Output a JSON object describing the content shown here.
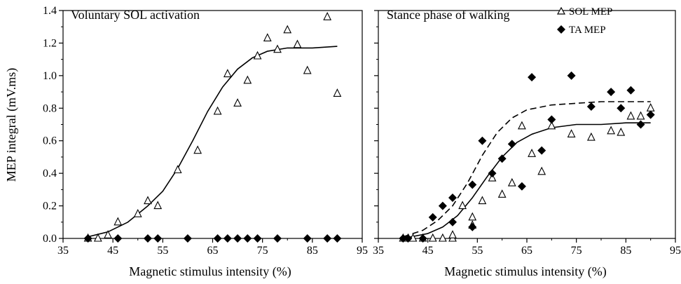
{
  "y_axis_label": "MEP integral (mV.ms)",
  "chart_data": [
    {
      "type": "scatter",
      "title": "Voluntary SOL activation",
      "xlabel": "Magnetic stimulus intensity (%)",
      "ylabel": "MEP integral (mV.ms)",
      "xlim": [
        35,
        95
      ],
      "ylim": [
        0,
        1.4
      ],
      "x_ticks": [
        "35",
        "45",
        "55",
        "65",
        "75",
        "85",
        "95"
      ],
      "y_ticks": [
        "0.0",
        "0.2",
        "0.4",
        "0.6",
        "0.8",
        "1.0",
        "1.2",
        "1.4"
      ],
      "series": [
        {
          "marker": "open-triangle",
          "points": [
            [
              40,
              0.0
            ],
            [
              42,
              0.0
            ],
            [
              44,
              0.02
            ],
            [
              46,
              0.1
            ],
            [
              50,
              0.15
            ],
            [
              52,
              0.23
            ],
            [
              54,
              0.2
            ],
            [
              58,
              0.42
            ],
            [
              62,
              0.54
            ],
            [
              66,
              0.78
            ],
            [
              68,
              1.01
            ],
            [
              70,
              0.83
            ],
            [
              72,
              0.97
            ],
            [
              74,
              1.12
            ],
            [
              76,
              1.23
            ],
            [
              78,
              1.16
            ],
            [
              80,
              1.28
            ],
            [
              82,
              1.19
            ],
            [
              84,
              1.03
            ],
            [
              88,
              1.36
            ],
            [
              90,
              0.89
            ]
          ]
        },
        {
          "marker": "filled-diamond",
          "points": [
            [
              40,
              0.0
            ],
            [
              46,
              0.0
            ],
            [
              52,
              0.0
            ],
            [
              54,
              0.0
            ],
            [
              60,
              0.0
            ],
            [
              66,
              0.0
            ],
            [
              68,
              0.0
            ],
            [
              70,
              0.0
            ],
            [
              72,
              0.0
            ],
            [
              74,
              0.0
            ],
            [
              78,
              0.0
            ],
            [
              84,
              0.0
            ],
            [
              88,
              0.0
            ],
            [
              90,
              0.0
            ]
          ]
        }
      ],
      "fits": [
        {
          "style": "solid",
          "points": [
            [
              40,
              0.01
            ],
            [
              44,
              0.04
            ],
            [
              48,
              0.1
            ],
            [
              52,
              0.2
            ],
            [
              55,
              0.29
            ],
            [
              58,
              0.43
            ],
            [
              61,
              0.6
            ],
            [
              64,
              0.78
            ],
            [
              67,
              0.93
            ],
            [
              70,
              1.04
            ],
            [
              73,
              1.11
            ],
            [
              76,
              1.15
            ],
            [
              80,
              1.17
            ],
            [
              85,
              1.17
            ],
            [
              90,
              1.18
            ]
          ]
        }
      ]
    },
    {
      "type": "scatter",
      "title": "Stance phase of walking",
      "xlabel": "Magnetic stimulus intensity (%)",
      "xlim": [
        35,
        95
      ],
      "ylim": [
        0,
        1.4
      ],
      "x_ticks": [
        "35",
        "45",
        "55",
        "65",
        "75",
        "85",
        "95"
      ],
      "legend_position": "top-right",
      "series": [
        {
          "name": "SOL MEP",
          "marker": "open-triangle",
          "points": [
            [
              40,
              0.0
            ],
            [
              41,
              0.0
            ],
            [
              42,
              0.0
            ],
            [
              44,
              0.0
            ],
            [
              46,
              0.0
            ],
            [
              48,
              0.0
            ],
            [
              50,
              0.0
            ],
            [
              50,
              0.02
            ],
            [
              52,
              0.2
            ],
            [
              54,
              0.13
            ],
            [
              54,
              0.08
            ],
            [
              56,
              0.23
            ],
            [
              58,
              0.37
            ],
            [
              60,
              0.27
            ],
            [
              62,
              0.34
            ],
            [
              64,
              0.69
            ],
            [
              66,
              0.52
            ],
            [
              68,
              0.41
            ],
            [
              70,
              0.69
            ],
            [
              74,
              0.64
            ],
            [
              78,
              0.62
            ],
            [
              82,
              0.66
            ],
            [
              84,
              0.65
            ],
            [
              86,
              0.75
            ],
            [
              88,
              0.75
            ],
            [
              90,
              0.8
            ]
          ]
        },
        {
          "name": "TA MEP",
          "marker": "filled-diamond",
          "points": [
            [
              40,
              0.0
            ],
            [
              41,
              0.0
            ],
            [
              44,
              0.0
            ],
            [
              46,
              0.13
            ],
            [
              48,
              0.2
            ],
            [
              50,
              0.25
            ],
            [
              50,
              0.1
            ],
            [
              54,
              0.33
            ],
            [
              54,
              0.07
            ],
            [
              56,
              0.6
            ],
            [
              58,
              0.4
            ],
            [
              60,
              0.49
            ],
            [
              62,
              0.58
            ],
            [
              64,
              0.32
            ],
            [
              66,
              0.99
            ],
            [
              68,
              0.54
            ],
            [
              70,
              0.73
            ],
            [
              74,
              1.0
            ],
            [
              78,
              0.81
            ],
            [
              82,
              0.9
            ],
            [
              84,
              0.8
            ],
            [
              86,
              0.91
            ],
            [
              88,
              0.7
            ],
            [
              90,
              0.76
            ]
          ]
        }
      ],
      "fits": [
        {
          "style": "solid",
          "points": [
            [
              40,
              0.0
            ],
            [
              45,
              0.03
            ],
            [
              48,
              0.07
            ],
            [
              51,
              0.14
            ],
            [
              54,
              0.25
            ],
            [
              57,
              0.38
            ],
            [
              60,
              0.5
            ],
            [
              63,
              0.59
            ],
            [
              66,
              0.64
            ],
            [
              70,
              0.68
            ],
            [
              75,
              0.7
            ],
            [
              80,
              0.7
            ],
            [
              85,
              0.71
            ],
            [
              90,
              0.71
            ]
          ]
        },
        {
          "style": "dashed",
          "points": [
            [
              40,
              0.01
            ],
            [
              44,
              0.05
            ],
            [
              47,
              0.11
            ],
            [
              50,
              0.2
            ],
            [
              53,
              0.34
            ],
            [
              56,
              0.51
            ],
            [
              59,
              0.65
            ],
            [
              62,
              0.74
            ],
            [
              65,
              0.79
            ],
            [
              70,
              0.82
            ],
            [
              75,
              0.83
            ],
            [
              80,
              0.84
            ],
            [
              85,
              0.84
            ],
            [
              90,
              0.84
            ]
          ]
        }
      ]
    }
  ]
}
